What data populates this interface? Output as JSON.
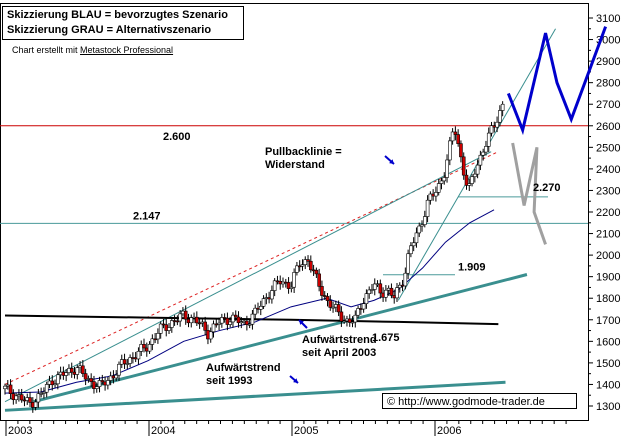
{
  "legend": {
    "line1": "Skizzierung BLAU = bevorzugtes Szenario",
    "line2": "Skizzierung GRAU = Alternativszenario"
  },
  "credit": {
    "prefix": "Chart erstellt mit ",
    "link": "Metastock Professional"
  },
  "annotations": {
    "pullback_line1": "Pullbacklinie =",
    "pullback_line2": "Widerstand",
    "uptrend2003_line1": "Aufwärtstrend",
    "uptrend2003_line2": "seit April 2003",
    "uptrend1993_line1": "Aufwärtstrend",
    "uptrend1993_line2": "seit 1993"
  },
  "copyright": "©  http://www.godmode-trader.de",
  "colors": {
    "candle_up": "#ffffff",
    "candle_down": "#cc0000",
    "wick": "#000000",
    "moving_average": "#000080",
    "resistance_2600": "#cc0000",
    "support_2147": "#4a9a9a",
    "trendline": "#3a8f8f",
    "blue_scenario": "#0000cc",
    "grey_scenario": "#a0a0a0",
    "pullback_line": "#dd2222"
  },
  "chart_data": {
    "type": "candlestick",
    "x_ticks": [
      "2003",
      "2004",
      "2005",
      "2006"
    ],
    "y_ticks": [
      1300,
      1400,
      1500,
      1600,
      1700,
      1800,
      1900,
      2000,
      2100,
      2200,
      2300,
      2400,
      2500,
      2600,
      2700,
      2800,
      2900,
      3000,
      3100
    ],
    "ylim": [
      1270,
      3150
    ],
    "xlim": [
      2003.0,
      2007.25
    ],
    "levels": [
      {
        "label": "2.600",
        "value": 2600
      },
      {
        "label": "2.147",
        "value": 2147
      },
      {
        "label": "2.270",
        "value": 2270
      },
      {
        "label": "1.909",
        "value": 1909
      },
      {
        "label": "1.675",
        "value": 1675
      }
    ],
    "price_path": [
      [
        2003.0,
        1380
      ],
      [
        2003.1,
        1340
      ],
      [
        2003.17,
        1310
      ],
      [
        2003.25,
        1350
      ],
      [
        2003.33,
        1420
      ],
      [
        2003.42,
        1450
      ],
      [
        2003.5,
        1480
      ],
      [
        2003.58,
        1420
      ],
      [
        2003.67,
        1390
      ],
      [
        2003.75,
        1440
      ],
      [
        2003.83,
        1500
      ],
      [
        2003.92,
        1540
      ],
      [
        2004.0,
        1580
      ],
      [
        2004.08,
        1650
      ],
      [
        2004.17,
        1690
      ],
      [
        2004.25,
        1720
      ],
      [
        2004.33,
        1700
      ],
      [
        2004.42,
        1640
      ],
      [
        2004.5,
        1690
      ],
      [
        2004.58,
        1710
      ],
      [
        2004.67,
        1680
      ],
      [
        2004.75,
        1730
      ],
      [
        2004.83,
        1810
      ],
      [
        2004.92,
        1880
      ],
      [
        2005.0,
        1860
      ],
      [
        2005.06,
        1960
      ],
      [
        2005.12,
        1980
      ],
      [
        2005.18,
        1880
      ],
      [
        2005.25,
        1790
      ],
      [
        2005.33,
        1730
      ],
      [
        2005.4,
        1690
      ],
      [
        2005.45,
        1700
      ],
      [
        2005.5,
        1790
      ],
      [
        2005.58,
        1860
      ],
      [
        2005.63,
        1830
      ],
      [
        2005.67,
        1840
      ],
      [
        2005.72,
        1800
      ],
      [
        2005.79,
        1900
      ],
      [
        2005.83,
        2020
      ],
      [
        2005.9,
        2130
      ],
      [
        2005.96,
        2250
      ],
      [
        2006.02,
        2300
      ],
      [
        2006.08,
        2400
      ],
      [
        2006.14,
        2600
      ],
      [
        2006.19,
        2450
      ],
      [
        2006.24,
        2290
      ],
      [
        2006.29,
        2400
      ],
      [
        2006.35,
        2500
      ],
      [
        2006.42,
        2600
      ],
      [
        2006.48,
        2700
      ]
    ],
    "moving_average": [
      [
        2003.0,
        1360
      ],
      [
        2003.25,
        1365
      ],
      [
        2003.5,
        1410
      ],
      [
        2003.75,
        1440
      ],
      [
        2004.0,
        1510
      ],
      [
        2004.25,
        1600
      ],
      [
        2004.5,
        1650
      ],
      [
        2004.75,
        1690
      ],
      [
        2005.0,
        1760
      ],
      [
        2005.25,
        1800
      ],
      [
        2005.42,
        1760
      ],
      [
        2005.58,
        1790
      ],
      [
        2005.75,
        1840
      ],
      [
        2005.92,
        1940
      ],
      [
        2006.08,
        2060
      ],
      [
        2006.25,
        2150
      ],
      [
        2006.42,
        2210
      ]
    ],
    "trendlines": [
      {
        "name": "pullback_line",
        "style": "dashed",
        "points": [
          [
            2003.0,
            1400
          ],
          [
            2006.45,
            2480
          ]
        ]
      },
      {
        "name": "upper_channel",
        "style": "solid-thin",
        "points": [
          [
            2003.0,
            1320
          ],
          [
            2006.4,
            2480
          ]
        ]
      },
      {
        "name": "uptrend_2003",
        "style": "solid-thick",
        "points": [
          [
            2003.2,
            1320
          ],
          [
            2006.65,
            1910
          ]
        ]
      },
      {
        "name": "uptrend_1993",
        "style": "solid-thick",
        "points": [
          [
            2003.0,
            1280
          ],
          [
            2006.5,
            1410
          ]
        ]
      },
      {
        "name": "horizontal_support",
        "style": "black-curve",
        "points": [
          [
            2003.0,
            1720
          ],
          [
            2004.0,
            1710
          ],
          [
            2005.0,
            1700
          ],
          [
            2005.75,
            1690
          ],
          [
            2006.45,
            1680
          ]
        ]
      },
      {
        "name": "steep_channel",
        "style": "solid-thin",
        "points": [
          [
            2005.75,
            1790
          ],
          [
            2006.85,
            3050
          ]
        ]
      }
    ],
    "scenarios": [
      {
        "name": "blue",
        "points": [
          [
            2006.52,
            2750
          ],
          [
            2006.62,
            2580
          ],
          [
            2006.78,
            3030
          ],
          [
            2006.86,
            2800
          ],
          [
            2006.96,
            2630
          ],
          [
            2007.2,
            3060
          ]
        ]
      },
      {
        "name": "grey",
        "points": [
          [
            2006.55,
            2520
          ],
          [
            2006.63,
            2230
          ],
          [
            2006.72,
            2500
          ],
          [
            2006.7,
            2200
          ],
          [
            2006.78,
            2050
          ]
        ]
      }
    ]
  }
}
